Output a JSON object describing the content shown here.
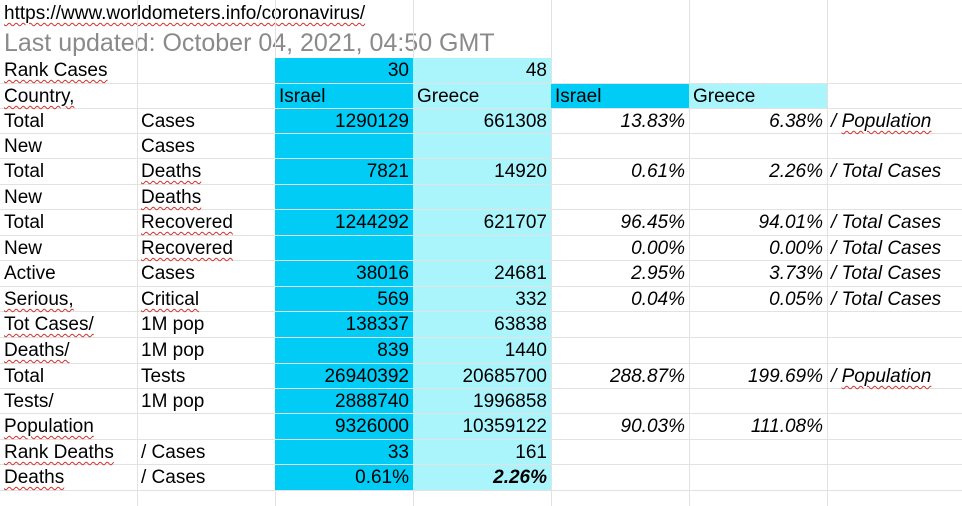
{
  "header": {
    "url": "https://www.worldometers.info/coronavirus/",
    "updated": "Last updated: October 04, 2021, 04:50 GMT"
  },
  "colors": {
    "israel_fill": "#00ccf5",
    "greece_fill": "#aaf5fb",
    "grid": "#e2e2e2",
    "updated_text": "#8a8a8a"
  },
  "rows": [
    {
      "a": "Rank Cases",
      "b": "",
      "isr": "30",
      "gre": "48",
      "pi": "",
      "pg": "",
      "note": ""
    },
    {
      "a": "Country,",
      "b": "",
      "isr": "Israel",
      "gre": "Greece",
      "pi": "Israel",
      "pg": "Greece",
      "note": ""
    },
    {
      "a": "Total",
      "b": "Cases",
      "isr": "1290129",
      "gre": "661308",
      "pi": "13.83%",
      "pg": "6.38%",
      "note": "/ Population"
    },
    {
      "a": "New",
      "b": "Cases",
      "isr": "",
      "gre": "",
      "pi": "",
      "pg": "",
      "note": ""
    },
    {
      "a": "Total",
      "b": "Deaths",
      "isr": "7821",
      "gre": "14920",
      "pi": "0.61%",
      "pg": "2.26%",
      "note": "/ Total Cases"
    },
    {
      "a": "New",
      "b": "Deaths",
      "isr": "",
      "gre": "",
      "pi": "",
      "pg": "",
      "note": ""
    },
    {
      "a": "Total",
      "b": "Recovered",
      "isr": "1244292",
      "gre": "621707",
      "pi": "96.45%",
      "pg": "94.01%",
      "note": "/ Total Cases"
    },
    {
      "a": "New",
      "b": "Recovered",
      "isr": "",
      "gre": "",
      "pi": "0.00%",
      "pg": "0.00%",
      "note": "/ Total Cases"
    },
    {
      "a": "Active",
      "b": "Cases",
      "isr": "38016",
      "gre": "24681",
      "pi": "2.95%",
      "pg": "3.73%",
      "note": "/ Total Cases"
    },
    {
      "a": "Serious,",
      "b": "Critical",
      "isr": "569",
      "gre": "332",
      "pi": "0.04%",
      "pg": "0.05%",
      "note": "/ Total Cases"
    },
    {
      "a": "Tot Cases/",
      "b": "1M pop",
      "isr": "138337",
      "gre": "63838",
      "pi": "",
      "pg": "",
      "note": ""
    },
    {
      "a": "Deaths/",
      "b": "1M pop",
      "isr": "839",
      "gre": "1440",
      "pi": "",
      "pg": "",
      "note": ""
    },
    {
      "a": "Total",
      "b": "Tests",
      "isr": "26940392",
      "gre": "20685700",
      "pi": "288.87%",
      "pg": "199.69%",
      "note": "/ Population"
    },
    {
      "a": "Tests/",
      "b": "1M pop",
      "isr": "2888740",
      "gre": "1996858",
      "pi": "",
      "pg": "",
      "note": ""
    },
    {
      "a": "Population",
      "b": "",
      "isr": "9326000",
      "gre": "10359122",
      "pi": "90.03%",
      "pg": "111.08%",
      "note": ""
    },
    {
      "a": "Rank Deaths",
      "b": "/ Cases",
      "isr": "33",
      "gre": "161",
      "pi": "",
      "pg": "",
      "note": ""
    },
    {
      "a": "Deaths",
      "b": "/ Cases",
      "isr": "0.61%",
      "gre": "2.26%",
      "pi": "",
      "pg": "",
      "note": ""
    }
  ]
}
